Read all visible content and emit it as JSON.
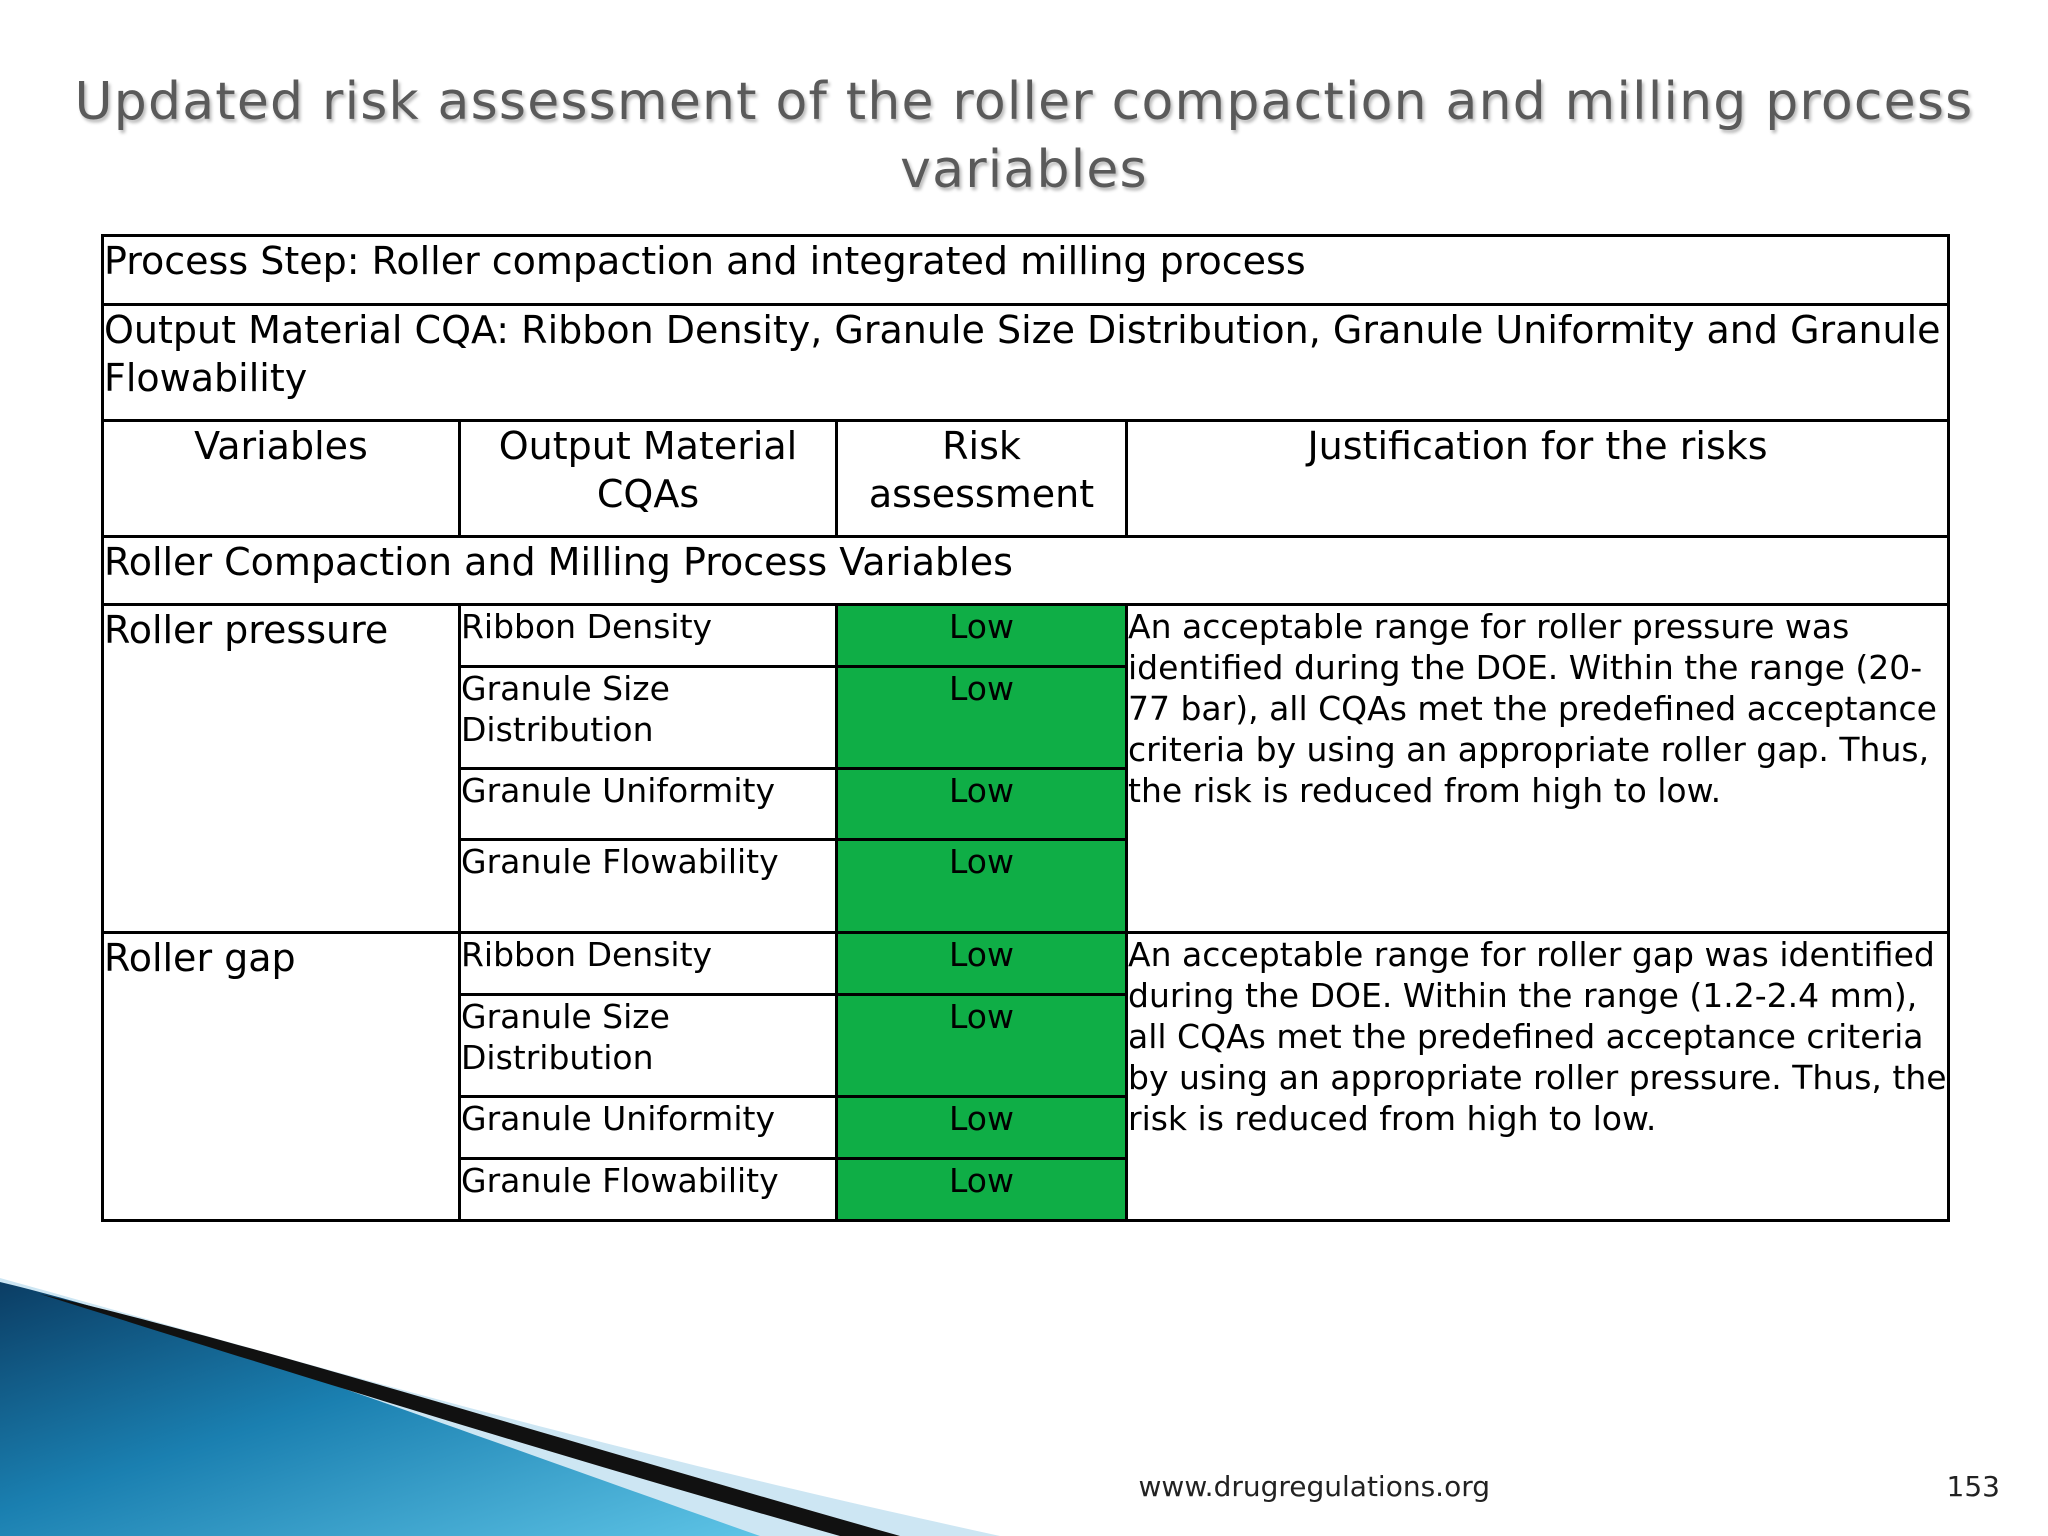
{
  "slide": {
    "title": "Updated risk assessment of the roller compaction and milling process variables",
    "footer_url": "www.drugregulations.org",
    "page_number": "153"
  },
  "table": {
    "process_step": "Process Step: Roller compaction and integrated milling process",
    "output_cqa": "Output Material CQA: Ribbon Density, Granule Size Distribution, Granule Uniformity and Granule Flowability",
    "headers": [
      "Variables",
      "Output Material CQAs",
      "Risk assessment",
      "Justification for the risks"
    ],
    "section_label": "Roller Compaction and Milling Process Variables",
    "risk_color": "#0fae46",
    "groups": [
      {
        "variable": "Roller pressure",
        "rows": [
          {
            "cqa": "Ribbon Density",
            "risk": "Low"
          },
          {
            "cqa": "Granule Size Distribution",
            "risk": "Low"
          },
          {
            "cqa": "Granule Uniformity",
            "risk": "Low"
          },
          {
            "cqa": "Granule Flowability",
            "risk": "Low"
          }
        ],
        "justification": "An acceptable range for roller pressure was identified during the DOE. Within the range (20-77 bar), all CQAs met the predefined acceptance criteria by using an appropriate roller gap. Thus, the risk is reduced from high to low."
      },
      {
        "variable": "Roller gap",
        "rows": [
          {
            "cqa": "Ribbon Density",
            "risk": "Low"
          },
          {
            "cqa": "Granule Size Distribution",
            "risk": "Low"
          },
          {
            "cqa": "Granule Uniformity",
            "risk": "Low"
          },
          {
            "cqa": "Granule Flowability",
            "risk": "Low"
          }
        ],
        "justification": "An acceptable range for roller gap was identified during the DOE. Within the range (1.2-2.4 mm), all CQAs met the predefined acceptance criteria by using an appropriate roller pressure. Thus, the risk is reduced from high to low."
      }
    ]
  },
  "decoration": {
    "swoosh_colors": [
      "#0b3d64",
      "#1a7fb0",
      "#5ec4e6",
      "#cde6f3"
    ]
  }
}
